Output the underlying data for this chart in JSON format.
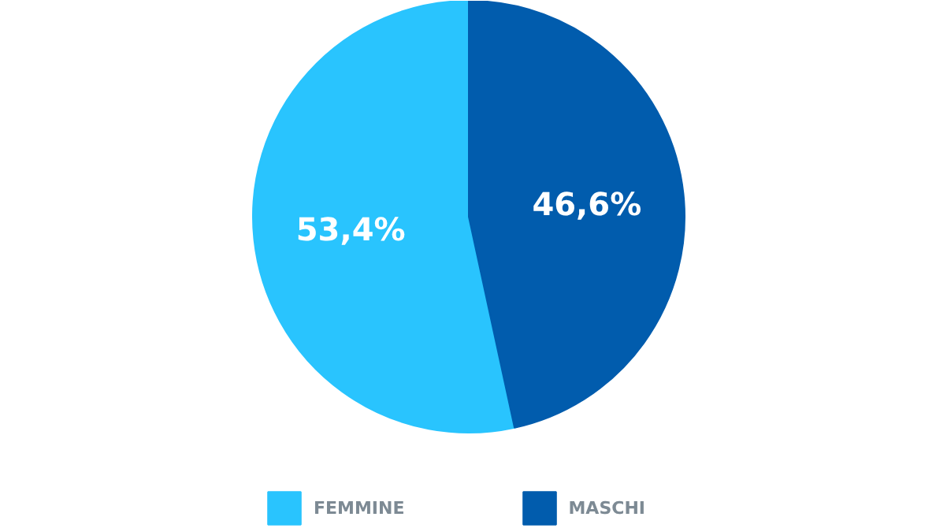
{
  "chart_data": {
    "type": "pie",
    "categories": [
      "FEMMINE",
      "MASCHI"
    ],
    "values": [
      53.4,
      46.6
    ],
    "value_labels": [
      "53,4%",
      "46,6%"
    ],
    "colors": [
      "#29c4fe",
      "#015cad"
    ],
    "legend": "bottom"
  }
}
